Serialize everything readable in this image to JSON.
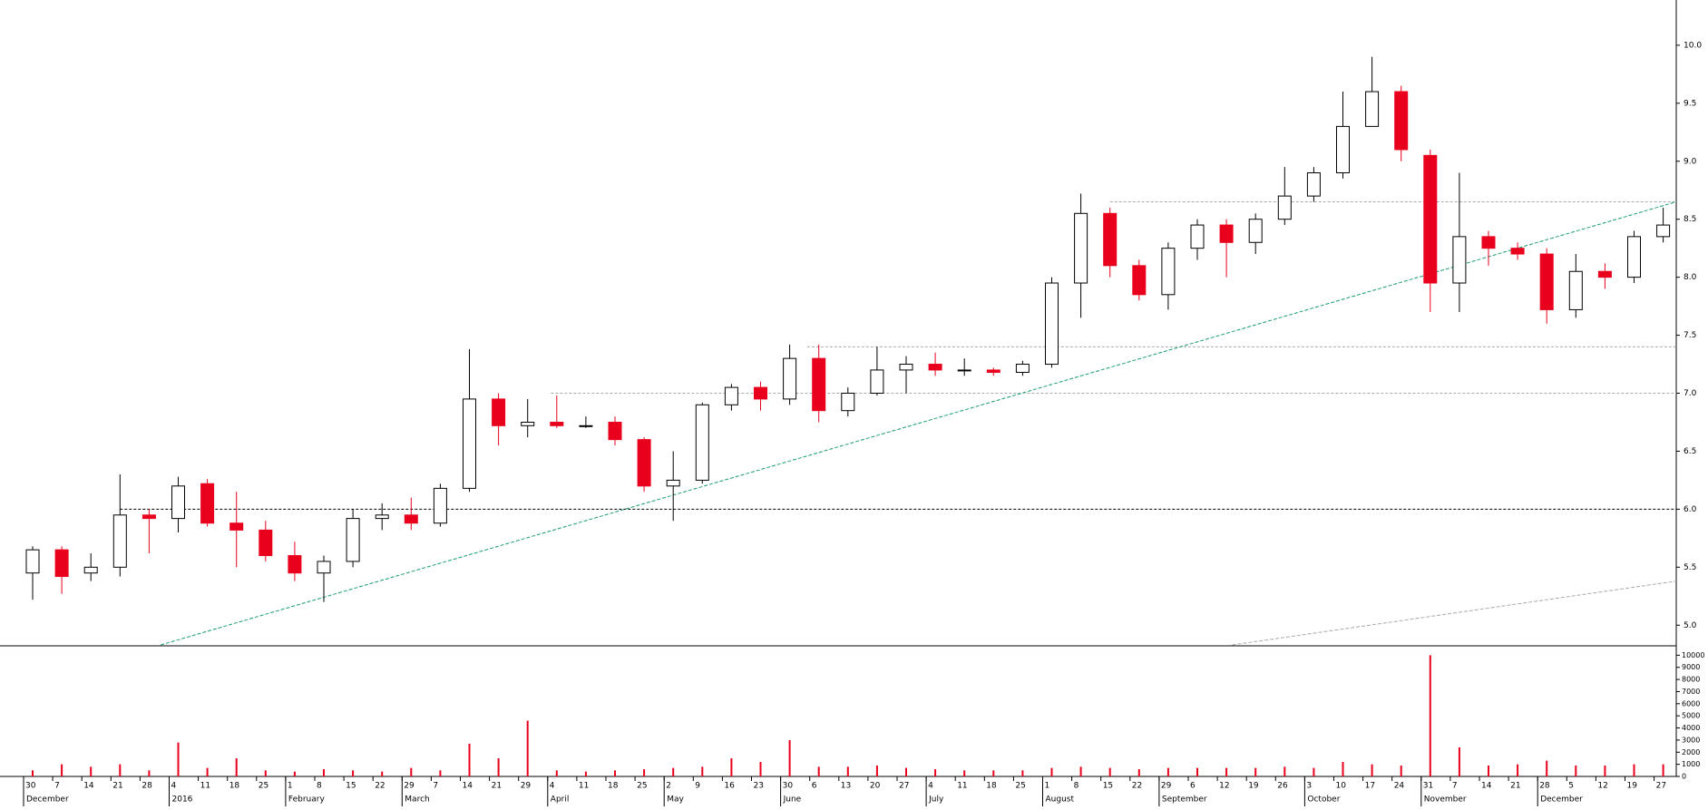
{
  "chart_data": [
    {
      "type": "candlestick",
      "categories": [
        "30",
        "7",
        "14",
        "21",
        "28",
        "4",
        "11",
        "18",
        "25",
        "1",
        "8",
        "15",
        "22",
        "29",
        "7",
        "14",
        "21",
        "29",
        "4",
        "11",
        "18",
        "25",
        "2",
        "9",
        "16",
        "23",
        "30",
        "6",
        "13",
        "20",
        "27",
        "4",
        "11",
        "18",
        "25",
        "1",
        "8",
        "15",
        "22",
        "29",
        "6",
        "12",
        "19",
        "26",
        "3",
        "10",
        "17",
        "24",
        "31",
        "7",
        "14",
        "21",
        "28",
        "5",
        "12",
        "19",
        "27"
      ],
      "months": [
        "December",
        null,
        null,
        null,
        null,
        "2016",
        null,
        null,
        null,
        "February",
        null,
        null,
        null,
        "March",
        null,
        null,
        null,
        null,
        "April",
        null,
        null,
        null,
        "May",
        null,
        null,
        null,
        "June",
        null,
        null,
        null,
        null,
        "July",
        null,
        null,
        null,
        "August",
        null,
        null,
        null,
        "September",
        null,
        null,
        null,
        null,
        "October",
        null,
        null,
        null,
        "November",
        null,
        null,
        null,
        "December",
        null,
        null,
        null,
        null
      ],
      "open": [
        5.45,
        5.65,
        5.45,
        5.5,
        5.95,
        5.92,
        6.22,
        5.88,
        5.82,
        5.6,
        5.45,
        5.55,
        5.92,
        5.95,
        5.88,
        6.18,
        6.95,
        6.72,
        6.75,
        6.72,
        6.75,
        6.6,
        6.2,
        6.25,
        6.9,
        7.05,
        6.95,
        7.3,
        6.85,
        7.0,
        7.2,
        7.25,
        7.2,
        7.2,
        7.18,
        7.25,
        7.95,
        8.55,
        8.1,
        7.85,
        8.25,
        8.45,
        8.3,
        8.5,
        8.7,
        8.9,
        9.3,
        9.6,
        9.05,
        7.95,
        8.35,
        8.25,
        8.2,
        7.72,
        8.05,
        8.0,
        8.35
      ],
      "high": [
        5.68,
        5.68,
        5.62,
        6.3,
        6.0,
        6.28,
        6.26,
        6.15,
        5.9,
        5.72,
        5.6,
        6.0,
        6.05,
        6.1,
        6.22,
        7.38,
        7.0,
        6.95,
        6.98,
        6.8,
        6.8,
        6.62,
        6.5,
        6.92,
        7.08,
        7.1,
        7.42,
        7.42,
        7.05,
        7.4,
        7.32,
        7.35,
        7.3,
        7.22,
        7.28,
        8.0,
        8.72,
        8.6,
        8.15,
        8.3,
        8.5,
        8.5,
        8.55,
        8.95,
        8.95,
        9.6,
        9.9,
        9.65,
        9.1,
        8.9,
        8.4,
        8.3,
        8.25,
        8.2,
        8.12,
        8.4,
        8.6
      ],
      "low": [
        5.22,
        5.27,
        5.38,
        5.42,
        5.62,
        5.8,
        5.85,
        5.5,
        5.55,
        5.38,
        5.2,
        5.5,
        5.82,
        5.82,
        5.85,
        6.15,
        6.55,
        6.62,
        6.7,
        6.7,
        6.55,
        6.15,
        5.9,
        6.22,
        6.85,
        6.85,
        6.9,
        6.75,
        6.8,
        6.98,
        7.0,
        7.15,
        7.15,
        7.15,
        7.15,
        7.22,
        7.65,
        8.0,
        7.8,
        7.72,
        8.15,
        8.0,
        8.2,
        8.45,
        8.65,
        8.85,
        9.3,
        9.0,
        7.7,
        7.7,
        8.1,
        8.15,
        7.6,
        7.65,
        7.9,
        7.95,
        8.3
      ],
      "close": [
        5.65,
        5.42,
        5.5,
        5.95,
        5.92,
        6.2,
        5.88,
        5.82,
        5.6,
        5.45,
        5.55,
        5.92,
        5.95,
        5.88,
        6.18,
        6.95,
        6.72,
        6.75,
        6.72,
        6.72,
        6.6,
        6.2,
        6.25,
        6.9,
        7.05,
        6.95,
        7.3,
        6.85,
        7.0,
        7.2,
        7.25,
        7.2,
        7.2,
        7.18,
        7.25,
        7.95,
        8.55,
        8.1,
        7.85,
        8.25,
        8.45,
        8.3,
        8.5,
        8.7,
        8.9,
        9.3,
        9.6,
        9.1,
        7.95,
        8.35,
        8.25,
        8.2,
        7.72,
        8.05,
        8.0,
        8.35,
        8.45
      ],
      "up_color": "#ffffff",
      "down_color": "#e8001c",
      "ylim": [
        4.83,
        10.39
      ],
      "yticks": [
        {
          "value": 5.0,
          "label": "5.0"
        },
        {
          "value": 5.5,
          "label": "5.5"
        },
        {
          "value": 6.0,
          "label": "6.0"
        },
        {
          "value": 6.5,
          "label": "6.5"
        },
        {
          "value": 7.0,
          "label": "7.0"
        },
        {
          "value": 7.5,
          "label": "7.5"
        },
        {
          "value": 8.0,
          "label": "8.0"
        },
        {
          "value": 8.5,
          "label": "8.5"
        },
        {
          "value": 9.0,
          "label": "9.0"
        },
        {
          "value": 9.5,
          "label": "9.5"
        },
        {
          "value": 10.0,
          "label": "10.0"
        }
      ],
      "hlines": [
        {
          "value": 6.0,
          "x_start": 3.0,
          "color": "#000000"
        },
        {
          "value": 7.0,
          "x_start": 17.8,
          "color": "#aaaaaa"
        },
        {
          "value": 7.4,
          "x_start": 26.6,
          "color": "#aaaaaa"
        },
        {
          "value": 8.65,
          "x_start": 37.0,
          "color": "#aaaaaa"
        }
      ],
      "trendlines": [
        {
          "x": [
            4.4,
            57.0
          ],
          "y": [
            4.83,
            8.65
          ],
          "color": "#1a9e6a"
        },
        {
          "x": [
            41.2,
            57.0
          ],
          "y": [
            4.83,
            5.38
          ],
          "color": "#aaaaaa"
        }
      ]
    },
    {
      "type": "bar",
      "values": [
        500,
        1000,
        800,
        1000,
        500,
        2800,
        700,
        1500,
        500,
        400,
        600,
        500,
        400,
        700,
        500,
        2700,
        1500,
        4600,
        500,
        400,
        500,
        600,
        700,
        800,
        1500,
        1200,
        3000,
        800,
        800,
        900,
        700,
        600,
        500,
        500,
        500,
        700,
        800,
        700,
        600,
        700,
        700,
        700,
        700,
        800,
        700,
        1200,
        1000,
        900,
        10000,
        2400,
        900,
        1000,
        1300,
        900,
        900,
        1000,
        1000
      ],
      "color": "#e8001c",
      "ylim": [
        0,
        10550
      ],
      "yticks": [
        0,
        1000,
        2000,
        3000,
        4000,
        5000,
        6000,
        7000,
        8000,
        9000,
        10000
      ]
    }
  ]
}
